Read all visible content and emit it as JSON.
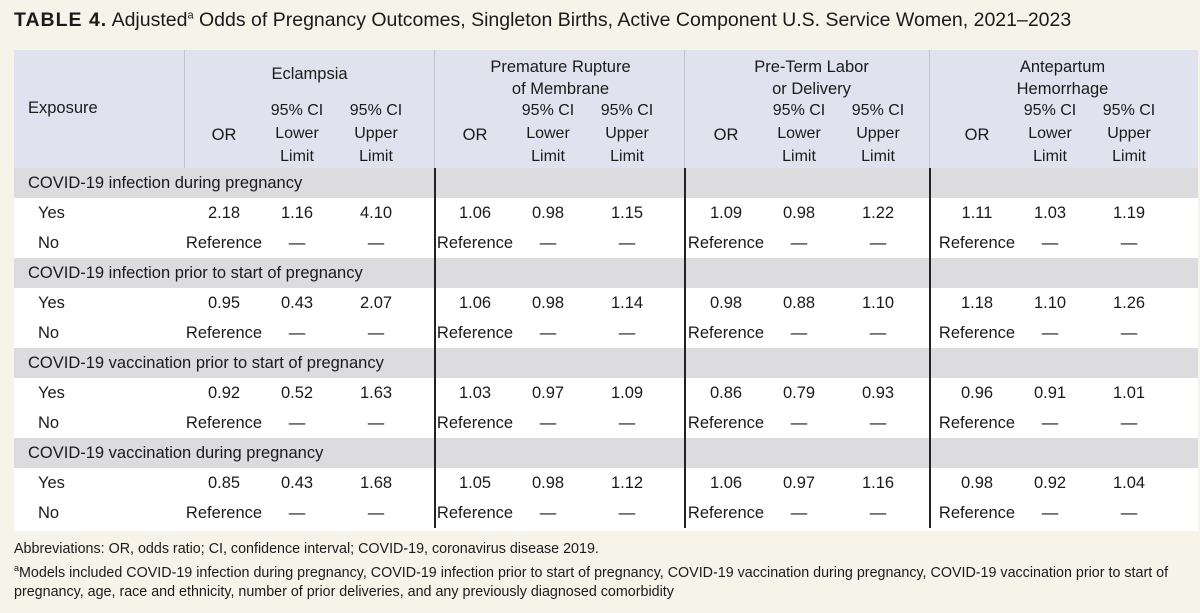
{
  "title": {
    "label": "TABLE 4.",
    "prefix": "Adjusted",
    "superscript": "a",
    "suffix": "Odds of Pregnancy Outcomes, Singleton Births, Active Component U.S. Service Women, 2021–2023"
  },
  "table": {
    "exposure_header": "Exposure",
    "outcomes": [
      {
        "line1": "Eclampsia",
        "line2": ""
      },
      {
        "line1": "Premature Rupture",
        "line2": "of Membrane"
      },
      {
        "line1": "Pre-Term Labor",
        "line2": "or Delivery"
      },
      {
        "line1": "Antepartum",
        "line2": "Hemorrhage"
      }
    ],
    "sub_or": "OR",
    "sub_lower": [
      "95% CI",
      "Lower",
      "Limit"
    ],
    "sub_upper": [
      "95% CI",
      "Upper",
      "Limit"
    ],
    "groups": [
      {
        "label": "COVID-19 infection during pregnancy",
        "rows": [
          {
            "label": "Yes",
            "values": [
              "2.18",
              "1.16",
              "4.10",
              "1.06",
              "0.98",
              "1.15",
              "1.09",
              "0.98",
              "1.22",
              "1.11",
              "1.03",
              "1.19"
            ]
          },
          {
            "label": "No",
            "values": [
              "Reference",
              "—",
              "—",
              "Reference",
              "—",
              "—",
              "Reference",
              "—",
              "—",
              "Reference",
              "—",
              "—"
            ]
          }
        ]
      },
      {
        "label": "COVID-19 infection prior to start of pregnancy",
        "rows": [
          {
            "label": "Yes",
            "values": [
              "0.95",
              "0.43",
              "2.07",
              "1.06",
              "0.98",
              "1.14",
              "0.98",
              "0.88",
              "1.10",
              "1.18",
              "1.10",
              "1.26"
            ]
          },
          {
            "label": "No",
            "values": [
              "Reference",
              "—",
              "—",
              "Reference",
              "—",
              "—",
              "Reference",
              "—",
              "—",
              "Reference",
              "—",
              "—"
            ]
          }
        ]
      },
      {
        "label": "COVID-19 vaccination prior to start of pregnancy",
        "rows": [
          {
            "label": "Yes",
            "values": [
              "0.92",
              "0.52",
              "1.63",
              "1.03",
              "0.97",
              "1.09",
              "0.86",
              "0.79",
              "0.93",
              "0.96",
              "0.91",
              "1.01"
            ]
          },
          {
            "label": "No",
            "values": [
              "Reference",
              "—",
              "—",
              "Reference",
              "—",
              "—",
              "Reference",
              "—",
              "—",
              "Reference",
              "—",
              "—"
            ]
          }
        ]
      },
      {
        "label": "COVID-19 vaccination during pregnancy",
        "rows": [
          {
            "label": "Yes",
            "values": [
              "0.85",
              "0.43",
              "1.68",
              "1.05",
              "0.98",
              "1.12",
              "1.06",
              "0.97",
              "1.16",
              "0.98",
              "0.92",
              "1.04"
            ]
          },
          {
            "label": "No",
            "values": [
              "Reference",
              "—",
              "—",
              "Reference",
              "—",
              "—",
              "Reference",
              "—",
              "—",
              "Reference",
              "—",
              "—"
            ]
          }
        ]
      }
    ]
  },
  "footnotes": {
    "abbreviations": "Abbreviations: OR, odds ratio; CI, confidence interval; COVID-19, coronavirus disease 2019.",
    "note_marker": "a",
    "note_text": "Models included COVID-19 infection during pregnancy, COVID-19 infection prior to start of pregnancy, COVID-19 vaccination during pregnancy, COVID-19 vaccination prior to start of pregnancy, age, race and ethnicity, number of prior deliveries, and any previously diagnosed comorbidity"
  }
}
